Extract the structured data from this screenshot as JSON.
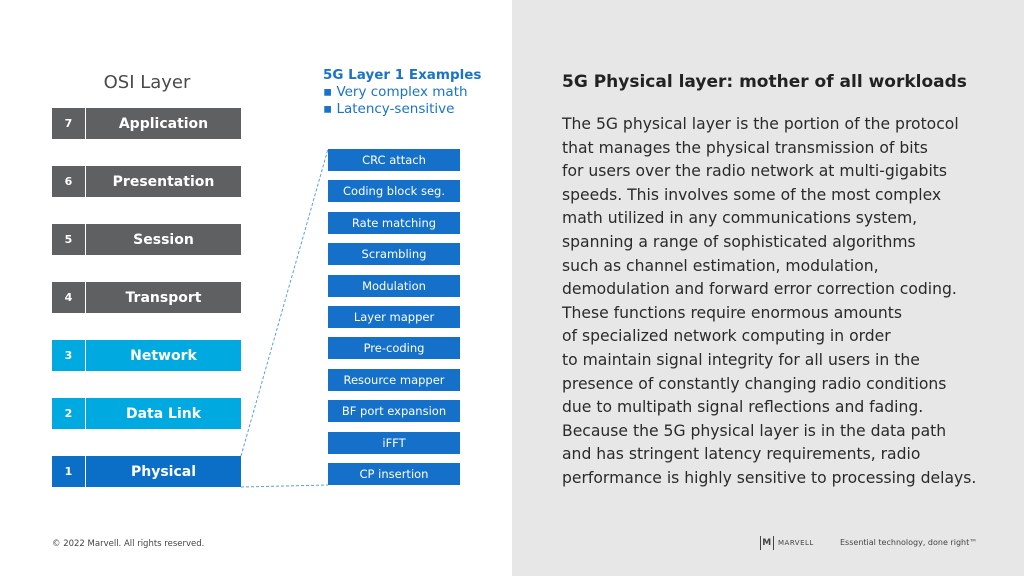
{
  "osi": {
    "title": "OSI Layer",
    "layers": [
      {
        "num": "7",
        "label": "Application",
        "color": "#5f6062"
      },
      {
        "num": "6",
        "label": "Presentation",
        "color": "#5f6062"
      },
      {
        "num": "5",
        "label": "Session",
        "color": "#5f6062"
      },
      {
        "num": "4",
        "label": "Transport",
        "color": "#5f6062"
      },
      {
        "num": "3",
        "label": "Network",
        "color": "#00a9e0"
      },
      {
        "num": "2",
        "label": "Data Link",
        "color": "#00a9e0"
      },
      {
        "num": "1",
        "label": "Physical",
        "color": "#0b6fc7"
      }
    ]
  },
  "examples": {
    "heading": "5G Layer 1 Examples",
    "bullets": [
      "▪ Very complex math",
      "▪ Latency-sensitive"
    ],
    "steps": [
      "CRC attach",
      "Coding block seg.",
      "Rate matching",
      "Scrambling",
      "Modulation",
      "Layer mapper",
      "Pre-coding",
      "Resource mapper",
      "BF port expansion",
      "iFFT",
      "CP insertion"
    ]
  },
  "content": {
    "title": "5G Physical layer: mother of all workloads",
    "lines": [
      "The 5G physical layer is the portion of the protocol",
      "that manages the physical transmission of bits",
      "for users over the radio network at multi-gigabits",
      "speeds. This involves some of the most complex",
      "math utilized in any communications system,",
      "spanning a range of sophisticated algorithms",
      "such as channel estimation, modulation,",
      "demodulation and forward error correction coding.",
      "These functions require enormous amounts",
      "of specialized network computing in order",
      "to maintain signal integrity for all users in the",
      "presence of constantly changing radio conditions",
      "due to multipath signal reflections and fading.",
      "Because the 5G physical layer is in the data path",
      "and has stringent latency requirements, radio",
      "performance is highly sensitive to processing delays."
    ]
  },
  "footer": {
    "copyright": "© 2022 Marvell. All rights reserved.",
    "logo": "MARVELL",
    "tagline": "Essential technology, done right™"
  }
}
